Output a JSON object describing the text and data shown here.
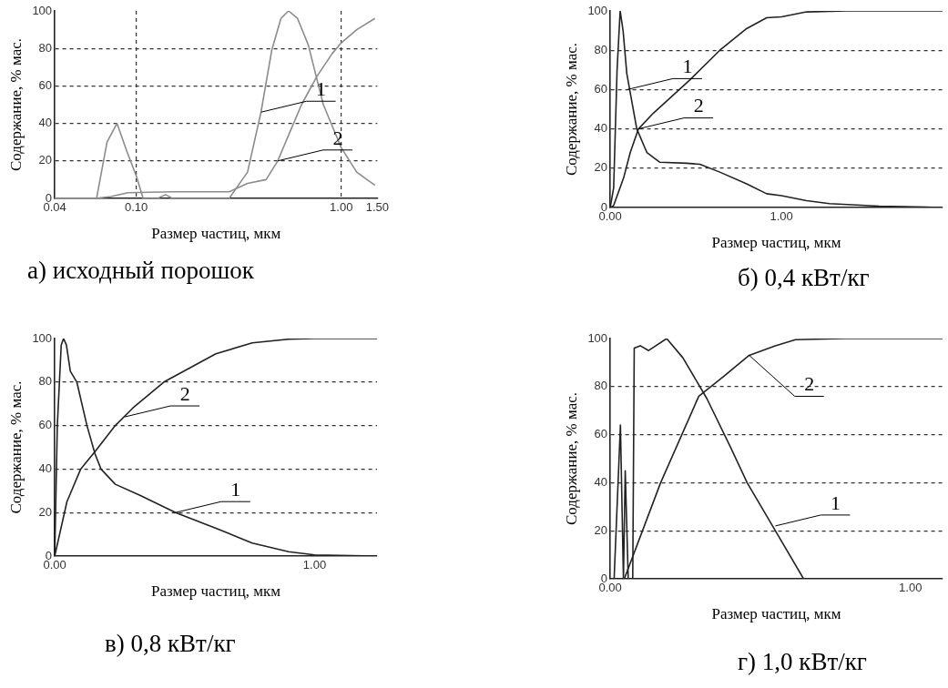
{
  "chart_data": [
    {
      "type": "line",
      "title": "а) исходный порошок",
      "xlabel": "Размер частиц, мкм",
      "ylabel": "Содержание, % мас.",
      "log": "x",
      "xlim": [
        0.04,
        1.5
      ],
      "ylim": [
        0,
        100
      ],
      "xticks": [
        0.04,
        {
          "value": 0.1,
          "label": "0.10"
        },
        {
          "value": 1,
          "label": "1.00"
        },
        {
          "value": 1.5,
          "label": "1.50"
        }
      ],
      "yticks": [
        0,
        20,
        40,
        60,
        80,
        100
      ],
      "grid": true,
      "legend": false,
      "series": [
        {
          "color": "#8c8c8c",
          "x": [
            0.04,
            0.064,
            0.072,
            0.0805,
            0.09,
            0.1,
            0.108,
            0.127,
            0.139,
            0.15,
            0.284,
            0.349,
            0.406,
            0.458,
            0.508,
            0.553,
            0.612,
            0.69,
            0.818,
            1.0,
            1.19,
            1.46
          ],
          "values": [
            0,
            0,
            30,
            40,
            25,
            12,
            0,
            0,
            2,
            0,
            0,
            14,
            46,
            79,
            96,
            100,
            96,
            82,
            50,
            27,
            14,
            7
          ]
        },
        {
          "color": "#8c8c8c",
          "x": [
            0.04,
            0.063,
            0.075,
            0.091,
            0.15,
            0.284,
            0.349,
            0.43,
            0.49,
            0.56,
            0.64,
            0.76,
            0.9,
            1.0,
            1.19,
            1.46
          ],
          "values": [
            0,
            0,
            1,
            3,
            3.5,
            3.5,
            8,
            10,
            20,
            35,
            50,
            65,
            77,
            83,
            90,
            96
          ]
        }
      ],
      "annotations": [
        {
          "text": "1",
          "x": 0.406,
          "y": 46
        },
        {
          "text": "2",
          "x": 0.49,
          "y": 20
        }
      ]
    },
    {
      "type": "line",
      "title": "б) 0,4 кВт/кг",
      "xlabel": "Размер частиц, мкм",
      "ylabel": "Содержание, % мас.",
      "xlim": [
        0,
        1.94
      ],
      "ylim": [
        0,
        100
      ],
      "xticks": [
        {
          "value": 0,
          "label": "0.00"
        },
        {
          "value": 1,
          "label": "1.00"
        }
      ],
      "yticks": [
        0,
        20,
        40,
        60,
        80,
        100
      ],
      "grid": true,
      "legend": false,
      "series": [
        {
          "color": "#222222",
          "x": [
            0,
            0.02,
            0.04,
            0.058,
            0.075,
            0.097,
            0.155,
            0.214,
            0.29,
            0.447,
            0.524,
            0.64,
            0.796,
            0.913,
            1.0,
            1.146,
            1.28,
            1.57,
            1.94
          ],
          "values": [
            0,
            10,
            70,
            100,
            90,
            68,
            40,
            28,
            23,
            22.5,
            22,
            18,
            12,
            7,
            6,
            3.5,
            2,
            0.7,
            0
          ]
        },
        {
          "color": "#222222",
          "x": [
            0,
            0.02,
            0.078,
            0.117,
            0.165,
            0.252,
            0.466,
            0.64,
            0.796,
            0.913,
            1.0,
            1.146,
            1.38,
            1.94
          ],
          "values": [
            0,
            1,
            15,
            28,
            40,
            48,
            65,
            80,
            91,
            96.5,
            97,
            99.5,
            100,
            100
          ]
        }
      ],
      "annotations": [
        {
          "text": "1",
          "x": 0.1,
          "y": 60
        },
        {
          "text": "2",
          "x": 0.165,
          "y": 40
        }
      ]
    },
    {
      "type": "line",
      "title": "в) 0,8 кВт/кг",
      "xlabel": "Размер частиц, мкм",
      "ylabel": "Содержание, % мас.",
      "xlim": [
        0,
        1.24
      ],
      "ylim": [
        0,
        100
      ],
      "xticks": [
        {
          "value": 0,
          "label": "0.00"
        },
        {
          "value": 1,
          "label": "1.00"
        }
      ],
      "yticks": [
        0,
        20,
        40,
        60,
        80,
        100
      ],
      "grid": true,
      "legend": false,
      "series": [
        {
          "color": "#222222",
          "x": [
            0,
            0.01,
            0.025,
            0.034,
            0.045,
            0.06,
            0.085,
            0.124,
            0.155,
            0.178,
            0.233,
            0.326,
            0.465,
            0.636,
            0.76,
            0.9,
            1.0,
            1.24
          ],
          "values": [
            0,
            60,
            97,
            100,
            97,
            85,
            80,
            60,
            47,
            40,
            33,
            28,
            20,
            12,
            6,
            2,
            0.5,
            0
          ]
        },
        {
          "color": "#222222",
          "x": [
            0,
            0.047,
            0.1,
            0.155,
            0.233,
            0.3,
            0.42,
            0.62,
            0.76,
            0.9,
            1.0,
            1.24
          ],
          "values": [
            0,
            25,
            40,
            48,
            60,
            68,
            80,
            93,
            98,
            99.7,
            100,
            100
          ]
        }
      ],
      "annotations": [
        {
          "text": "1",
          "x": 0.465,
          "y": 20
        },
        {
          "text": "2",
          "x": 0.27,
          "y": 64
        }
      ]
    },
    {
      "type": "line",
      "title": "г) 1,0 кВт/кг",
      "xlabel": "Размер частиц, мкм",
      "ylabel": "Содержание, % мас.",
      "xlim": [
        0,
        1.107
      ],
      "ylim": [
        0,
        100
      ],
      "xticks": [
        {
          "value": 0,
          "label": "0.00"
        },
        {
          "value": 1,
          "label": "1.00"
        }
      ],
      "yticks": [
        0,
        20,
        40,
        60,
        80,
        100
      ],
      "grid": true,
      "legend": false,
      "series": [
        {
          "color": "#222222",
          "x": [
            0,
            0.013,
            0.034,
            0.044,
            0.05,
            0.06,
            0.075,
            0.08,
            0.1,
            0.128,
            0.188,
            0.242,
            0.322,
            0.4,
            0.456,
            0.55,
            0.644,
            1.107
          ],
          "values": [
            0,
            0,
            64,
            0,
            45,
            0,
            0,
            96,
            97,
            95,
            100,
            92,
            75,
            55,
            40,
            20,
            0,
            0
          ]
        },
        {
          "color": "#222222",
          "x": [
            0,
            0.047,
            0.168,
            0.295,
            0.376,
            0.463,
            0.55,
            0.617,
            0.78,
            1.107
          ],
          "values": [
            0,
            0,
            40,
            76,
            84,
            93,
            97,
            99.5,
            100,
            100
          ]
        }
      ],
      "annotations": [
        {
          "text": "1",
          "x": 0.55,
          "y": 22
        },
        {
          "text": "2",
          "x": 0.463,
          "y": 93
        }
      ]
    }
  ]
}
